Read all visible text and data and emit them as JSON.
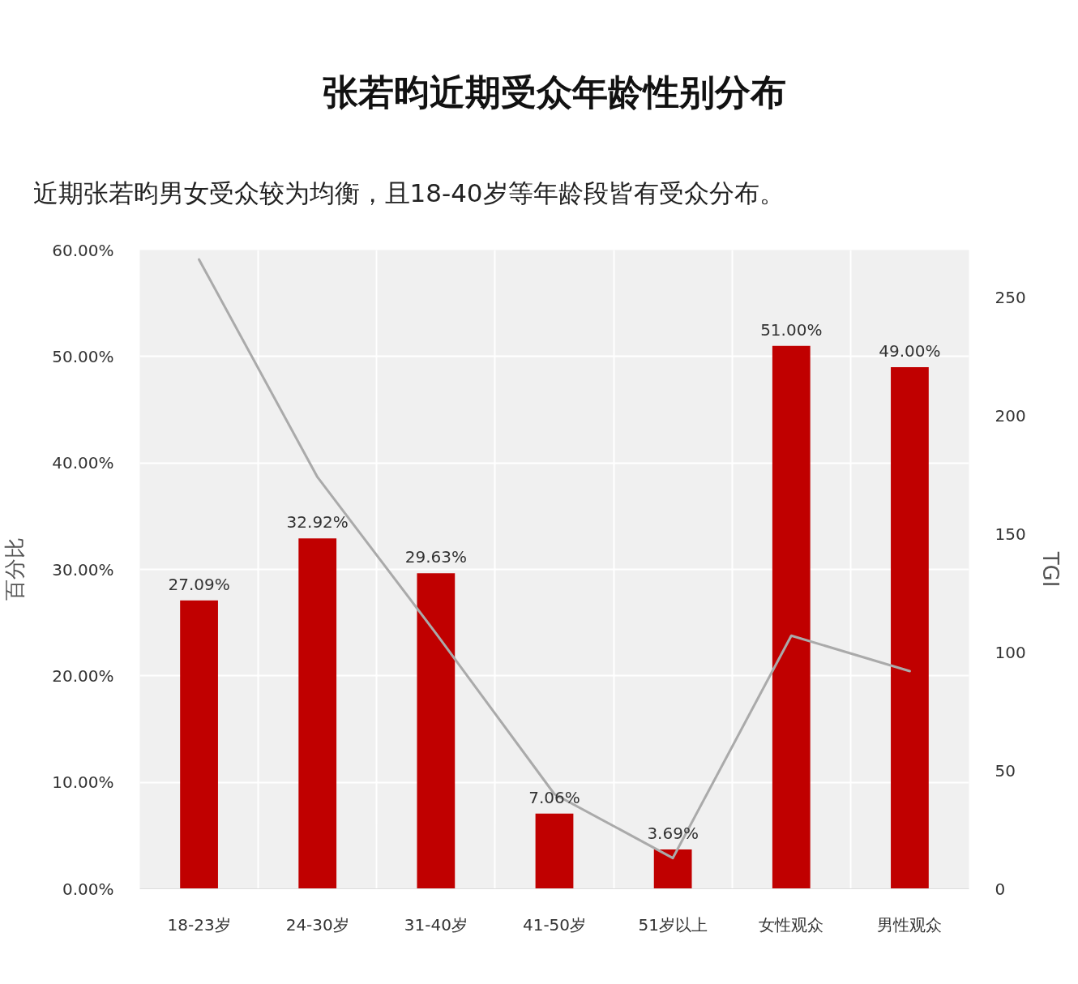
{
  "chart_data": {
    "type": "bar",
    "title": "张若昀近期受众年龄性别分布",
    "subtitle": "近期张若昀男女受众较为均衡，且18-40岁等年龄段皆有受众分布。",
    "ylabel": "百分比",
    "y2label": "TGI",
    "categories": [
      "18-23岁",
      "24-30岁",
      "31-40岁",
      "41-50岁",
      "51岁以上",
      "女性观众",
      "男性观众"
    ],
    "series": [
      {
        "color": "#c00000",
        "values": [
          27.09,
          32.92,
          29.63,
          7.06,
          3.69,
          51.0,
          49.0
        ],
        "value_labels": [
          "27.09%",
          "32.92%",
          "29.63%",
          "7.06%",
          "3.69%",
          "51.00%",
          "49.00%"
        ]
      },
      {
        "type": "line",
        "axis": "y2",
        "color": "#aaaaaa",
        "values": [
          266,
          174,
          108,
          40,
          13,
          107,
          92
        ]
      }
    ],
    "ylim": [
      0,
      60
    ],
    "yticks": [
      {
        "value": 0,
        "label": "0.00%"
      },
      {
        "value": 10,
        "label": "10.00%"
      },
      {
        "value": 20,
        "label": "20.00%"
      },
      {
        "value": 30,
        "label": "30.00%"
      },
      {
        "value": 40,
        "label": "40.00%"
      },
      {
        "value": 50,
        "label": "50.00%"
      },
      {
        "value": 60,
        "label": "60.00%"
      }
    ],
    "y2lim": [
      0,
      270
    ],
    "y2ticks": [
      0,
      50,
      100,
      150,
      200,
      250
    ],
    "grid": true
  }
}
